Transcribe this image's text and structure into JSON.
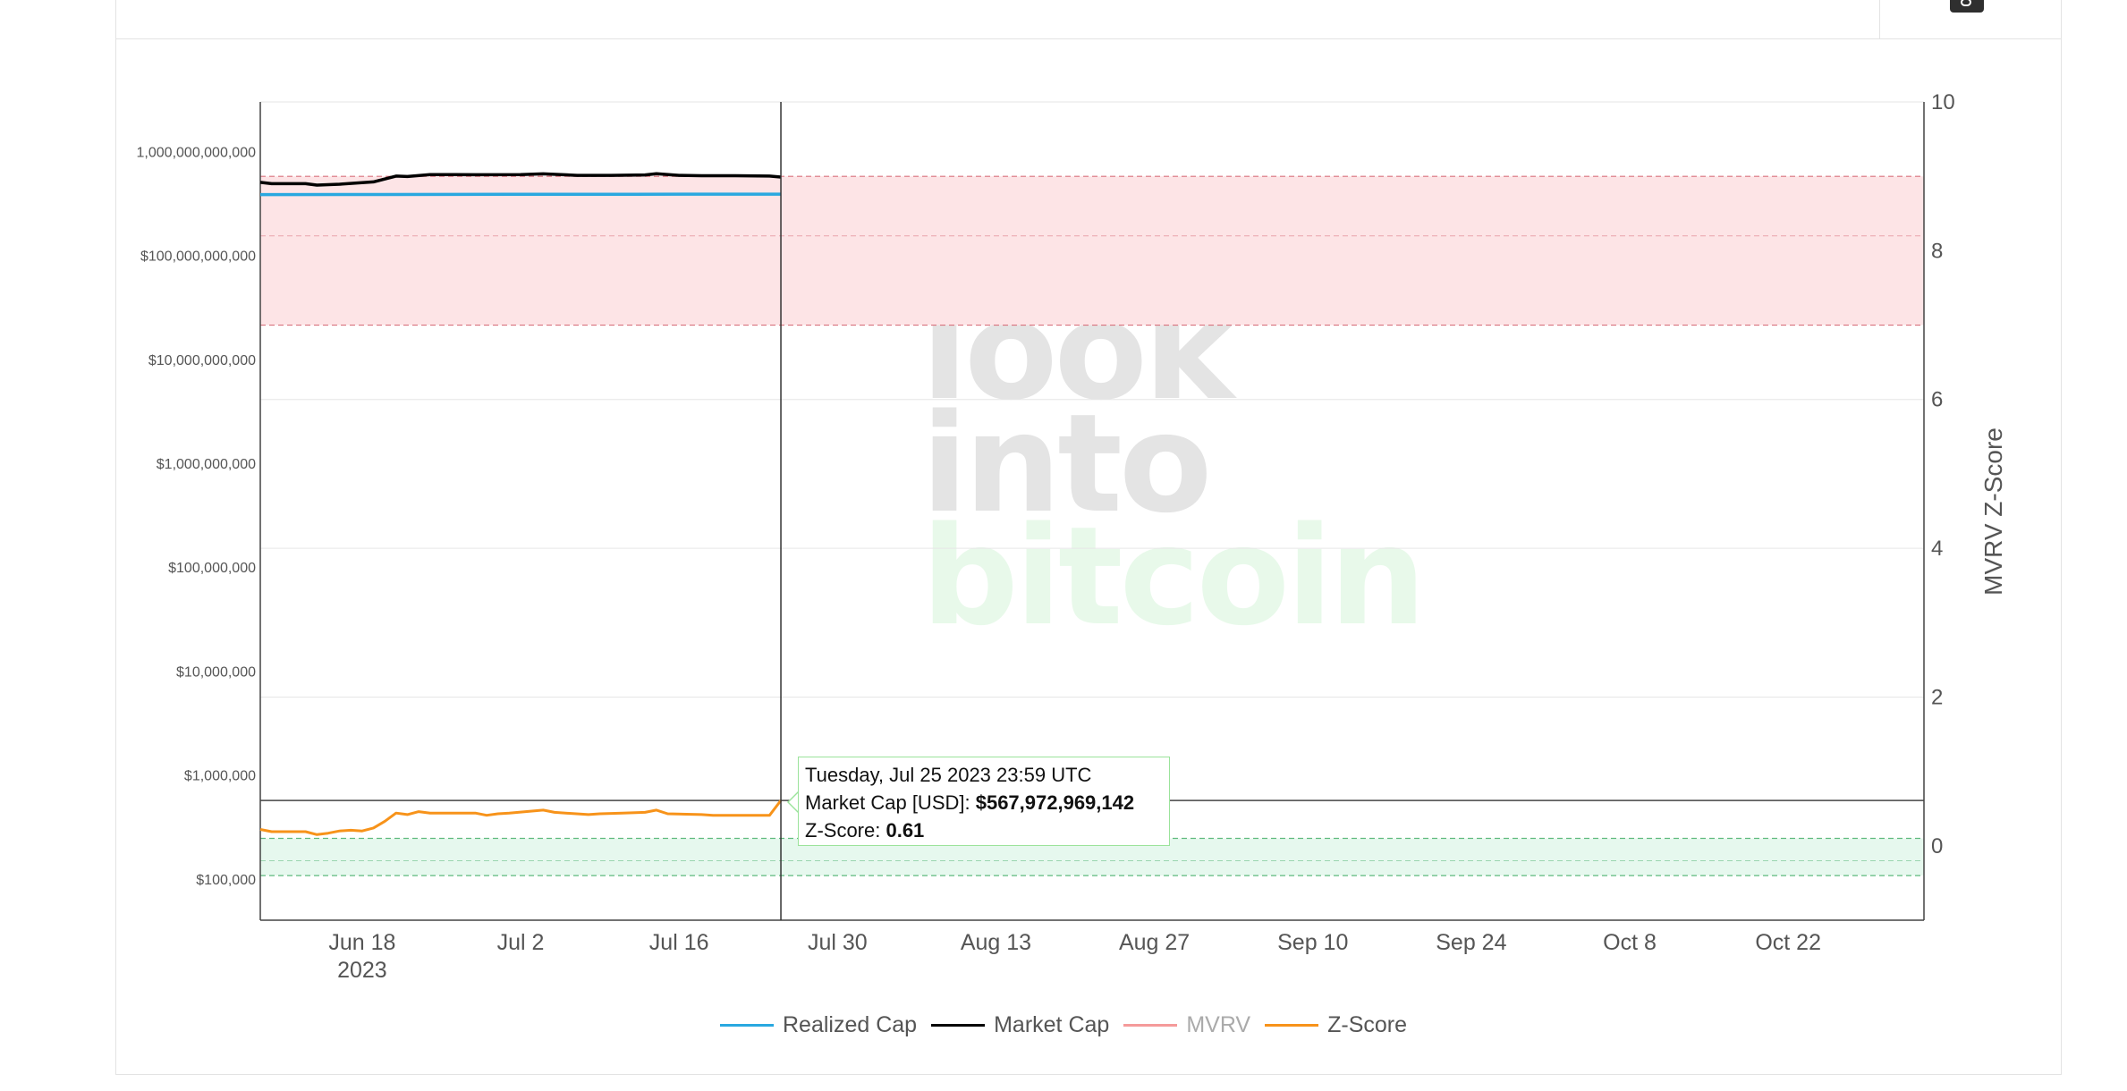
{
  "watermark": {
    "line1": "look",
    "line2": "into",
    "line3": "bitcoin"
  },
  "tooltip": {
    "date": "Tuesday, Jul 25 2023 23:59 UTC",
    "market_cap_label": "Market Cap [USD]: ",
    "market_cap_value": "$567,972,969,142",
    "zscore_label": "Z-Score: ",
    "zscore_value": "0.61"
  },
  "colors": {
    "realized_cap": "#29a8e0",
    "market_cap": "#000000",
    "mvrv": "#f59a9a",
    "zscore": "#f7931a",
    "red_band": "#fde4e6",
    "green_band": "#e6f8ee"
  },
  "legend": [
    {
      "label": "Realized Cap",
      "color": "#29a8e0",
      "active": true
    },
    {
      "label": "Market Cap",
      "color": "#000000",
      "active": true
    },
    {
      "label": "MVRV",
      "color": "#f59a9a",
      "active": false
    },
    {
      "label": "Z-Score",
      "color": "#f7931a",
      "active": true
    }
  ],
  "chart_data": {
    "type": "line",
    "y_left_scale": "log",
    "y_left_ticks": [
      "$100,000",
      "$1,000,000",
      "$10,000,000",
      "$100,000,000",
      "$1,000,000,000",
      "$10,000,000,000",
      "$100,000,000,000",
      "1,000,000,000,000"
    ],
    "y_left_range": [
      40000,
      3000000000000
    ],
    "y_right_label": "MVRV Z-Score",
    "y_right_ticks": [
      "0",
      "2",
      "4",
      "6",
      "8",
      "10"
    ],
    "y_right_range": [
      -1,
      10
    ],
    "x_ticks": [
      {
        "label": "Jun 18",
        "sub": "2023",
        "date": "2023-06-18"
      },
      {
        "label": "Jul 2",
        "date": "2023-07-02"
      },
      {
        "label": "Jul 16",
        "date": "2023-07-16"
      },
      {
        "label": "Jul 30",
        "date": "2023-07-30"
      },
      {
        "label": "Aug 13",
        "date": "2023-08-13"
      },
      {
        "label": "Aug 27",
        "date": "2023-08-27"
      },
      {
        "label": "Sep 10",
        "date": "2023-09-10"
      },
      {
        "label": "Sep 24",
        "date": "2023-09-24"
      },
      {
        "label": "Oct 8",
        "date": "2023-10-08"
      },
      {
        "label": "Oct 22",
        "date": "2023-10-22"
      }
    ],
    "x_range": [
      "2023-06-09",
      "2023-11-03"
    ],
    "bands": [
      {
        "type": "red",
        "zscore_from": 7.0,
        "zscore_to": 9.0,
        "mid_line": 8.2
      },
      {
        "type": "green",
        "zscore_from": -0.4,
        "zscore_to": 0.1,
        "mid_line": -0.2
      }
    ],
    "hline_zscore": 0.61,
    "crosshair_date": "2023-07-25",
    "series": [
      {
        "name": "Realized Cap",
        "dates": [
          "2023-06-09",
          "2023-06-20",
          "2023-07-01",
          "2023-07-12",
          "2023-07-25"
        ],
        "values": [
          385000000000,
          386000000000,
          387000000000,
          388000000000,
          389000000000
        ]
      },
      {
        "name": "Market Cap",
        "dates": [
          "2023-06-09",
          "2023-06-10",
          "2023-06-13",
          "2023-06-14",
          "2023-06-16",
          "2023-06-19",
          "2023-06-21",
          "2023-06-22",
          "2023-06-24",
          "2023-06-28",
          "2023-07-02",
          "2023-07-04",
          "2023-07-07",
          "2023-07-10",
          "2023-07-13",
          "2023-07-14",
          "2023-07-16",
          "2023-07-18",
          "2023-07-21",
          "2023-07-24",
          "2023-07-25"
        ],
        "values": [
          505000000000,
          490000000000,
          490000000000,
          475000000000,
          485000000000,
          510000000000,
          580000000000,
          575000000000,
          600000000000,
          598000000000,
          600000000000,
          610000000000,
          590000000000,
          590000000000,
          595000000000,
          612000000000,
          590000000000,
          585000000000,
          585000000000,
          580000000000,
          567972969142
        ]
      },
      {
        "name": "Z-Score",
        "dates": [
          "2023-06-09",
          "2023-06-10",
          "2023-06-13",
          "2023-06-14",
          "2023-06-15",
          "2023-06-16",
          "2023-06-17",
          "2023-06-18",
          "2023-06-19",
          "2023-06-20",
          "2023-06-21",
          "2023-06-22",
          "2023-06-23",
          "2023-06-24",
          "2023-06-28",
          "2023-06-29",
          "2023-06-30",
          "2023-07-01",
          "2023-07-04",
          "2023-07-05",
          "2023-07-08",
          "2023-07-09",
          "2023-07-11",
          "2023-07-13",
          "2023-07-14",
          "2023-07-15",
          "2023-07-18",
          "2023-07-19",
          "2023-07-24",
          "2023-07-25"
        ],
        "values": [
          0.22,
          0.19,
          0.19,
          0.15,
          0.17,
          0.2,
          0.21,
          0.2,
          0.24,
          0.33,
          0.44,
          0.42,
          0.46,
          0.44,
          0.44,
          0.41,
          0.43,
          0.44,
          0.48,
          0.45,
          0.42,
          0.43,
          0.44,
          0.45,
          0.48,
          0.43,
          0.42,
          0.41,
          0.41,
          0.61
        ]
      }
    ]
  }
}
